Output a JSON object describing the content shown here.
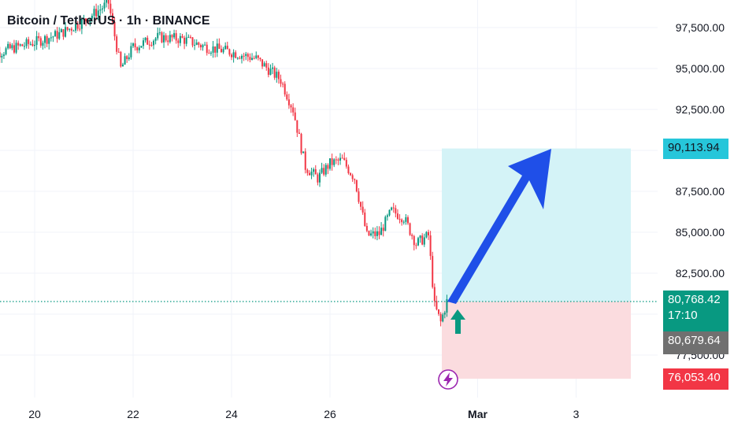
{
  "title": "Bitcoin / TetherUS · 1h · BINANCE",
  "price_axis": {
    "ticks": [
      "97,500.00",
      "95,000.00",
      "92,500.00",
      "87,500.00",
      "85,000.00",
      "82,500.00",
      "77,500.00"
    ]
  },
  "time_axis": {
    "ticks": [
      {
        "label": "20",
        "bold": false
      },
      {
        "label": "22",
        "bold": false
      },
      {
        "label": "24",
        "bold": false
      },
      {
        "label": "26",
        "bold": false
      },
      {
        "label": "Mar",
        "bold": true
      },
      {
        "label": "3",
        "bold": false
      }
    ]
  },
  "tags": {
    "take_profit": "90,113.94",
    "current_price": "80,768.42",
    "countdown": "17:10",
    "previous_close": "80,679.64",
    "stop_loss": "76,053.40"
  },
  "colors": {
    "up_candle": "#089981",
    "down_candle": "#f23645",
    "profit_zone": "#d4f3f7",
    "loss_zone": "#fbdcdf",
    "arrow": "#1f4fe8",
    "entry_arrow": "#089981",
    "lightning": "#9c27b0"
  },
  "icons": {
    "entry_marker": "up-arrow-icon",
    "event_marker": "lightning-icon",
    "projection": "big-arrow-icon"
  },
  "chart_data": {
    "type": "candlestick",
    "symbol": "Bitcoin / TetherUS",
    "interval": "1h",
    "exchange": "BINANCE",
    "y_range": [
      74500,
      99500
    ],
    "x_range_days": [
      "Feb 19",
      "Mar 4"
    ],
    "price_path": [
      {
        "x": "Feb 19",
        "close": 95700
      },
      {
        "x": "Feb 19 12:00",
        "close": 96200
      },
      {
        "x": "Feb 20",
        "close": 96600
      },
      {
        "x": "Feb 20 12:00",
        "close": 97100
      },
      {
        "x": "Feb 21",
        "close": 97900
      },
      {
        "x": "Feb 21 12:00",
        "close": 99000
      },
      {
        "x": "Feb 21 18:00",
        "close": 95000
      },
      {
        "x": "Feb 22",
        "close": 96300
      },
      {
        "x": "Feb 22 12:00",
        "close": 96900
      },
      {
        "x": "Feb 23",
        "close": 96800
      },
      {
        "x": "Feb 23 12:00",
        "close": 96300
      },
      {
        "x": "Feb 24",
        "close": 96000
      },
      {
        "x": "Feb 24 12:00",
        "close": 95600
      },
      {
        "x": "Feb 25",
        "close": 94300
      },
      {
        "x": "Feb 25 06:00",
        "close": 92500
      },
      {
        "x": "Feb 25 12:00",
        "close": 89000
      },
      {
        "x": "Feb 25 18:00",
        "close": 88300
      },
      {
        "x": "Feb 26",
        "close": 89200
      },
      {
        "x": "Feb 26 06:00",
        "close": 89400
      },
      {
        "x": "Feb 26 12:00",
        "close": 88300
      },
      {
        "x": "Feb 26 18:00",
        "close": 84800
      },
      {
        "x": "Feb 27",
        "close": 84900
      },
      {
        "x": "Feb 27 06:00",
        "close": 86300
      },
      {
        "x": "Feb 27 12:00",
        "close": 85900
      },
      {
        "x": "Feb 27 18:00",
        "close": 84300
      },
      {
        "x": "Feb 28",
        "close": 84800
      },
      {
        "x": "Feb 28 03:00",
        "close": 80500
      },
      {
        "x": "Feb 28 06:00",
        "close": 79500
      },
      {
        "x": "Feb 28 09:00",
        "close": 80768.42
      }
    ],
    "last_price": 80768.42,
    "previous_close": 80679.64,
    "position": {
      "side": "long",
      "entry": 80768.42,
      "take_profit": 90113.94,
      "stop_loss": 76053.4
    },
    "grid": true
  }
}
